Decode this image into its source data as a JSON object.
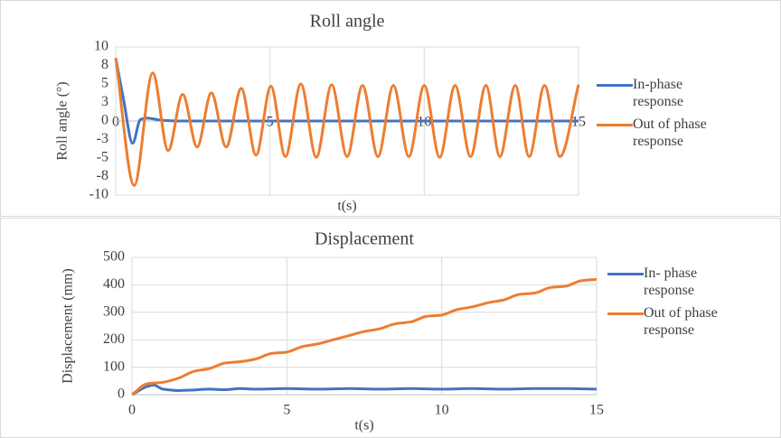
{
  "chart_data": [
    {
      "type": "line",
      "title": "Roll angle",
      "x_label": "t(s)",
      "y_label": "Roll angle (°)",
      "xlim": [
        0,
        15
      ],
      "xticks": [
        0,
        5,
        10,
        15
      ],
      "ylim": [
        -10,
        10
      ],
      "yticks": [
        -10,
        {
          "value": -7.5,
          "label": "-8"
        },
        -5,
        {
          "value": -2.5,
          "label": "-3"
        },
        0,
        {
          "value": 2.5,
          "label": "3"
        },
        5,
        {
          "value": 7.5,
          "label": "8"
        },
        10
      ],
      "grid": "x",
      "legend": "right",
      "series": [
        {
          "name": "In-phase response",
          "color": "#4472c4",
          "x": [
            0,
            0.25,
            0.55,
            0.8,
            1.0,
            1.5,
            2.0,
            15
          ],
          "values": [
            8.5,
            3,
            -3,
            0.2,
            0.4,
            0.1,
            0,
            0
          ]
        },
        {
          "name": "Out of phase response",
          "color": "#ed7d31",
          "x": [
            0,
            0.6,
            1.2,
            1.7,
            2.17,
            2.64,
            3.1,
            3.58,
            4.07,
            4.55,
            5.03,
            5.5,
            6.0,
            6.5,
            7.0,
            7.5,
            8.0,
            8.5,
            9.0,
            9.5,
            10.0,
            10.5,
            11.0,
            11.5,
            12.0,
            12.45,
            12.95,
            13.4,
            13.9,
            14.4,
            15.0
          ],
          "values": [
            8.5,
            -8.7,
            6.5,
            -4,
            3.6,
            -3.5,
            3.8,
            -3.5,
            4.4,
            -4.6,
            4.7,
            -4.8,
            5,
            -4.9,
            4.9,
            -4.8,
            4.8,
            -4.8,
            4.8,
            -4.8,
            4.8,
            -4.9,
            4.8,
            -4.8,
            4.8,
            -4.8,
            4.8,
            -4.8,
            4.8,
            -4.8,
            4.9
          ]
        }
      ]
    },
    {
      "type": "line",
      "title": "Displacement",
      "x_label": "t(s)",
      "y_label": "Displacement (mm)",
      "xlim": [
        0,
        15
      ],
      "xticks": [
        0,
        5,
        10,
        15
      ],
      "ylim": [
        0,
        500
      ],
      "yticks": [
        0,
        100,
        200,
        300,
        400,
        500
      ],
      "grid": "both",
      "legend": "right",
      "series": [
        {
          "name": "In- phase response",
          "color": "#4472c4",
          "x": [
            0,
            0.5,
            0.7,
            1.0,
            1.5,
            2.0,
            2.5,
            3.0,
            3.5,
            4.0,
            5.0,
            6.0,
            7.0,
            8.0,
            9.0,
            10.0,
            11.0,
            12.0,
            13.0,
            14.0,
            15.0
          ],
          "values": [
            0,
            30,
            35,
            20,
            15,
            17,
            20,
            18,
            22,
            20,
            22,
            20,
            22,
            20,
            22,
            20,
            22,
            20,
            22,
            22,
            20
          ]
        },
        {
          "name": "Out of phase response",
          "color": "#ed7d31",
          "x": [
            0,
            0.5,
            1.0,
            1.5,
            2.0,
            2.5,
            3.0,
            3.5,
            4.0,
            4.5,
            5.0,
            5.5,
            6.0,
            6.5,
            7.0,
            7.5,
            8.0,
            8.5,
            9.0,
            9.5,
            10.0,
            10.5,
            11.0,
            11.5,
            12.0,
            12.5,
            13.0,
            13.5,
            14.0,
            14.5,
            15.0
          ],
          "values": [
            0,
            40,
            45,
            60,
            85,
            95,
            115,
            120,
            130,
            150,
            155,
            175,
            185,
            200,
            215,
            230,
            240,
            258,
            265,
            285,
            290,
            310,
            320,
            335,
            345,
            365,
            370,
            390,
            395,
            415,
            420
          ]
        }
      ]
    }
  ]
}
